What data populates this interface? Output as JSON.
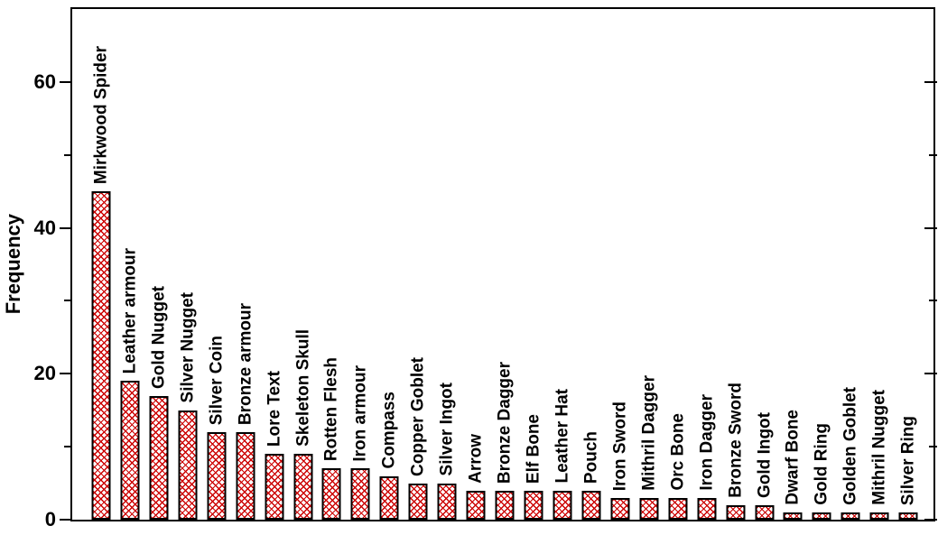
{
  "chart_data": {
    "type": "bar",
    "title": "",
    "xlabel": "",
    "ylabel": "Frequency",
    "ylim": [
      0,
      70
    ],
    "yticks_major": [
      0,
      20,
      40,
      60
    ],
    "yticks_minor": [
      10,
      30,
      50
    ],
    "grid": false,
    "legend": null,
    "bar_style": {
      "fill": "#ffffff",
      "hatch": "diagonal-crosshatch",
      "hatch_color": "#cc0000",
      "border_color": "#000000"
    },
    "text_color": "#000000",
    "background": "#ffffff",
    "categories": [
      "Mirkwood Spider",
      "Leather armour",
      "Gold Nugget",
      "Silver Nugget",
      "Silver Coin",
      "Bronze armour",
      "Lore Text",
      "Skeleton Skull",
      "Rotten Flesh",
      "Iron armour",
      "Compass",
      "Copper Goblet",
      "Silver Ingot",
      "Arrow",
      "Bronze Dagger",
      "Elf Bone",
      "Leather Hat",
      "Pouch",
      "Iron Sword",
      "Mithril Dagger",
      "Orc Bone",
      "Iron Dagger",
      "Bronze Sword",
      "Gold Ingot",
      "Dwarf Bone",
      "Gold Ring",
      "Golden Goblet",
      "Mithril Nugget",
      "Silver Ring"
    ],
    "values": [
      45,
      19,
      17,
      15,
      12,
      12,
      9,
      9,
      7,
      7,
      6,
      5,
      5,
      4,
      4,
      4,
      4,
      4,
      3,
      3,
      3,
      3,
      2,
      2,
      1,
      1,
      1,
      1,
      1
    ]
  }
}
